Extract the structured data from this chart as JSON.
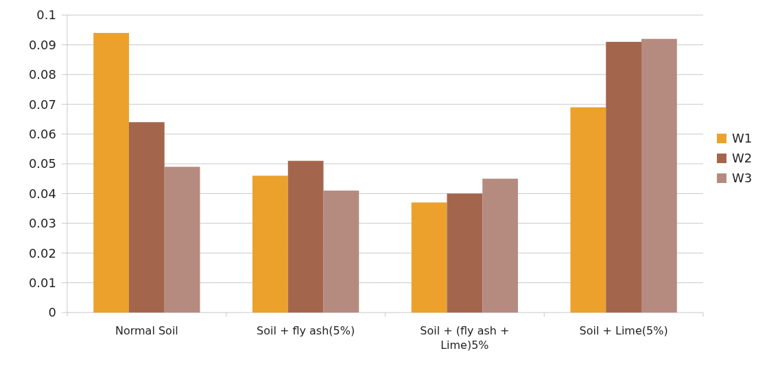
{
  "chart_data": {
    "type": "bar",
    "categories": [
      "Normal Soil",
      "Soil + fly ash(5%)",
      "Soil + (fly ash + Lime)5%",
      "Soil + Lime(5%)"
    ],
    "series": [
      {
        "name": "W1",
        "color": "#eba12c",
        "values": [
          0.094,
          0.046,
          0.037,
          0.069
        ]
      },
      {
        "name": "W2",
        "color": "#a3664d",
        "values": [
          0.064,
          0.051,
          0.04,
          0.091
        ]
      },
      {
        "name": "W3",
        "color": "#b58b80",
        "values": [
          0.049,
          0.041,
          0.045,
          0.092
        ]
      }
    ],
    "ylim": [
      0,
      0.1
    ],
    "yticks": [
      0,
      0.01,
      0.02,
      0.03,
      0.04,
      0.05,
      0.06,
      0.07,
      0.08,
      0.09,
      0.1
    ],
    "grid": "y",
    "legend": "right"
  }
}
